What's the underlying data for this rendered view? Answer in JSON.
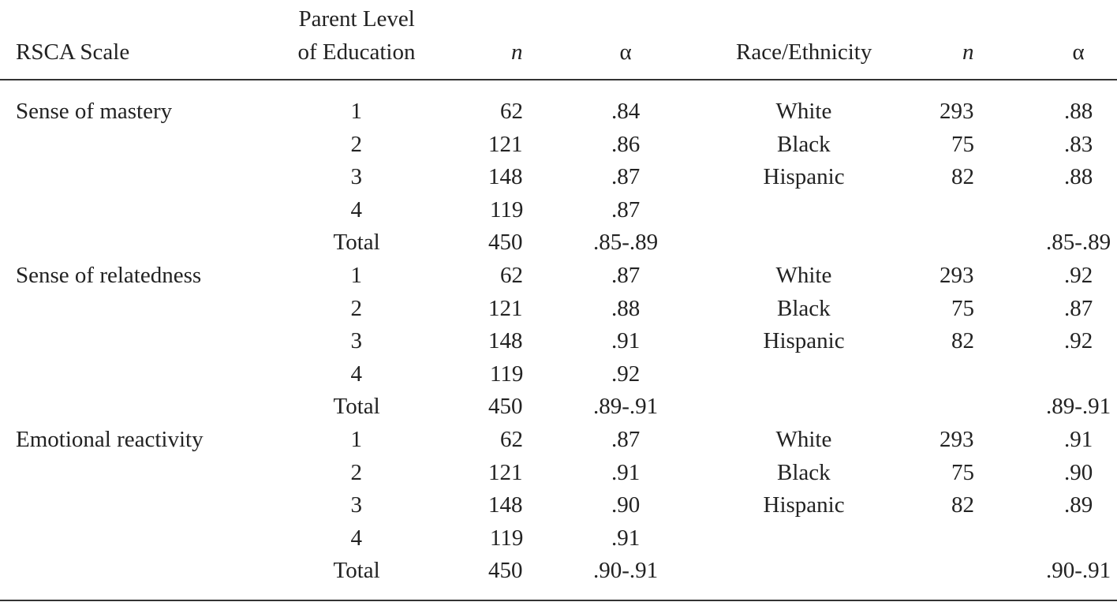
{
  "table": {
    "columns": [
      [
        "RSCA Scale"
      ],
      [
        "Parent Level",
        "of Education"
      ],
      [
        "n"
      ],
      [
        "α"
      ],
      [
        "Race/Ethnicity"
      ],
      [
        "n"
      ],
      [
        "α"
      ]
    ],
    "rows": [
      [
        "Sense of mastery",
        1,
        62,
        ".84",
        "White",
        293,
        ".88"
      ],
      [
        null,
        2,
        121,
        ".86",
        "Black",
        75,
        ".83"
      ],
      [
        null,
        3,
        148,
        ".87",
        "Hispanic",
        82,
        ".88"
      ],
      [
        null,
        4,
        119,
        ".87",
        null,
        null,
        null
      ],
      [
        null,
        "Total",
        450,
        ".85-.89",
        null,
        null,
        ".85-.89"
      ],
      [
        "Sense of relatedness",
        1,
        62,
        ".87",
        "White",
        293,
        ".92"
      ],
      [
        null,
        2,
        121,
        ".88",
        "Black",
        75,
        ".87"
      ],
      [
        null,
        3,
        148,
        ".91",
        "Hispanic",
        82,
        ".92"
      ],
      [
        null,
        4,
        119,
        ".92",
        null,
        null,
        null
      ],
      [
        null,
        "Total",
        450,
        ".89-.91",
        null,
        null,
        ".89-.91"
      ],
      [
        "Emotional reactivity",
        1,
        62,
        ".87",
        "White",
        293,
        ".91"
      ],
      [
        null,
        2,
        121,
        ".91",
        "Black",
        75,
        ".90"
      ],
      [
        null,
        3,
        148,
        ".90",
        "Hispanic",
        82,
        ".89"
      ],
      [
        null,
        4,
        119,
        ".91",
        null,
        null,
        null
      ],
      [
        null,
        "Total",
        450,
        ".90-.91",
        null,
        null,
        ".90-.91"
      ]
    ]
  }
}
